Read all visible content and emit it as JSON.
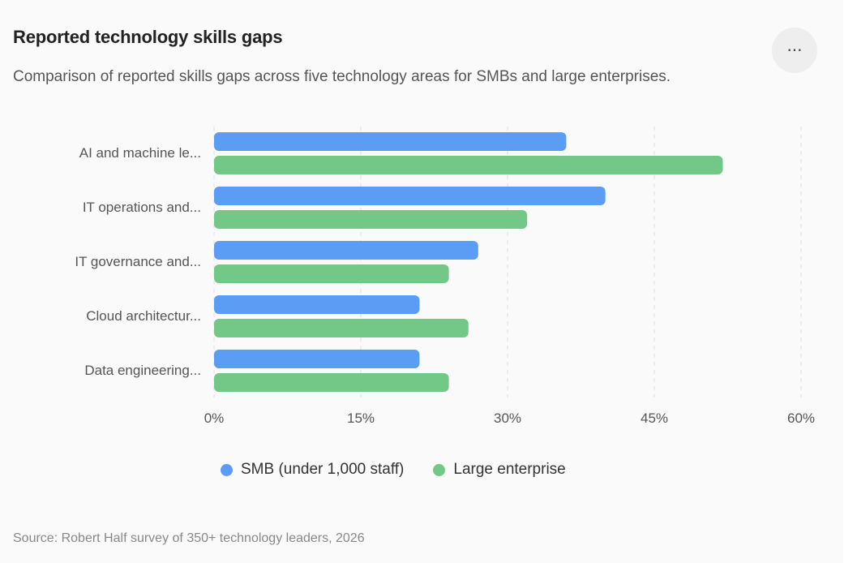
{
  "header": {
    "title": "Reported technology skills gaps",
    "subtitle": "Comparison of reported skills gaps across five technology areas for SMBs and large enterprises.",
    "more_label": "···"
  },
  "colors": {
    "smb": "#5b9cf5",
    "large": "#74c887",
    "grid": "#dddddd"
  },
  "chart_data": {
    "type": "bar",
    "orientation": "horizontal",
    "categories": [
      "AI and machine le...",
      "IT operations and...",
      "IT governance and...",
      "Cloud architectur...",
      "Data engineering..."
    ],
    "series": [
      {
        "name": "SMB (under 1,000 staff)",
        "values": [
          36,
          40,
          27,
          21,
          21
        ]
      },
      {
        "name": "Large enterprise",
        "values": [
          52,
          32,
          24,
          26,
          24
        ]
      }
    ],
    "xlim": [
      0,
      60
    ],
    "xticks": [
      0,
      15,
      30,
      45,
      60
    ],
    "tick_labels": [
      "0%",
      "15%",
      "30%",
      "45%",
      "60%"
    ],
    "grid": true,
    "legend_position": "bottom"
  },
  "footer": {
    "source": "Source: Robert Half survey of 350+ technology leaders, 2026"
  }
}
